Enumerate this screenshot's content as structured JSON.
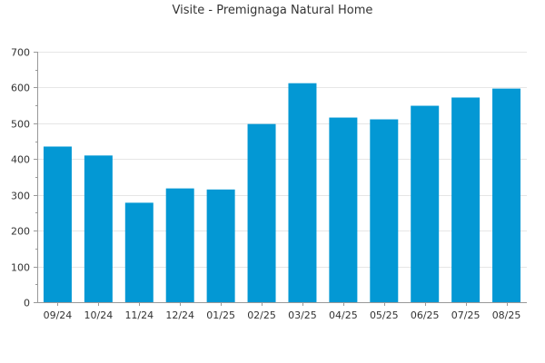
{
  "chart_data": {
    "type": "bar",
    "title": "Visite - Premignaga Natural Home",
    "xlabel": "",
    "ylabel": "",
    "categories": [
      "09/24",
      "10/24",
      "11/24",
      "12/24",
      "01/25",
      "02/25",
      "03/25",
      "04/25",
      "05/25",
      "06/25",
      "07/25",
      "08/25"
    ],
    "values": [
      435,
      410,
      278,
      318,
      315,
      498,
      612,
      516,
      511,
      549,
      572,
      597
    ],
    "ylim": [
      0,
      700
    ],
    "yticks": [
      0,
      100,
      200,
      300,
      400,
      500,
      600,
      700
    ],
    "grid": true,
    "legend": "none",
    "bar_color": "#0398d4",
    "grid_color": "#e6e6e6",
    "axis_color": "#999999"
  }
}
